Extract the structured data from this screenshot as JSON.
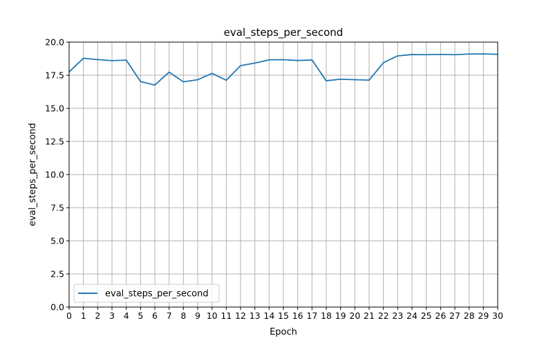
{
  "chart_data": {
    "type": "line",
    "title": "eval_steps_per_second",
    "xlabel": "Epoch",
    "ylabel": "eval_steps_per_second",
    "xlim": [
      0,
      30
    ],
    "ylim": [
      0,
      20
    ],
    "x_ticks": [
      "0",
      "1",
      "2",
      "3",
      "4",
      "5",
      "6",
      "7",
      "8",
      "9",
      "10",
      "11",
      "12",
      "13",
      "14",
      "15",
      "16",
      "17",
      "18",
      "19",
      "20",
      "21",
      "22",
      "23",
      "24",
      "25",
      "26",
      "27",
      "28",
      "29",
      "30"
    ],
    "y_ticks": [
      "0.0",
      "2.5",
      "5.0",
      "7.5",
      "10.0",
      "12.5",
      "15.0",
      "17.5",
      "20.0"
    ],
    "grid": true,
    "legend_position": "lower-left",
    "series": [
      {
        "name": "eval_steps_per_second",
        "color": "#1f77b4",
        "x": [
          0,
          1,
          2,
          3,
          4,
          5,
          6,
          7,
          8,
          9,
          10,
          11,
          12,
          13,
          14,
          15,
          16,
          17,
          18,
          19,
          20,
          21,
          22,
          23,
          24,
          25,
          26,
          27,
          28,
          29,
          30
        ],
        "values": [
          17.75,
          18.78,
          18.68,
          18.6,
          18.64,
          17.02,
          16.76,
          17.73,
          17.0,
          17.16,
          17.64,
          17.12,
          18.22,
          18.42,
          18.66,
          18.67,
          18.61,
          18.65,
          17.08,
          17.2,
          17.16,
          17.13,
          18.45,
          18.96,
          19.06,
          19.05,
          19.07,
          19.05,
          19.1,
          19.11,
          19.08
        ]
      }
    ]
  }
}
